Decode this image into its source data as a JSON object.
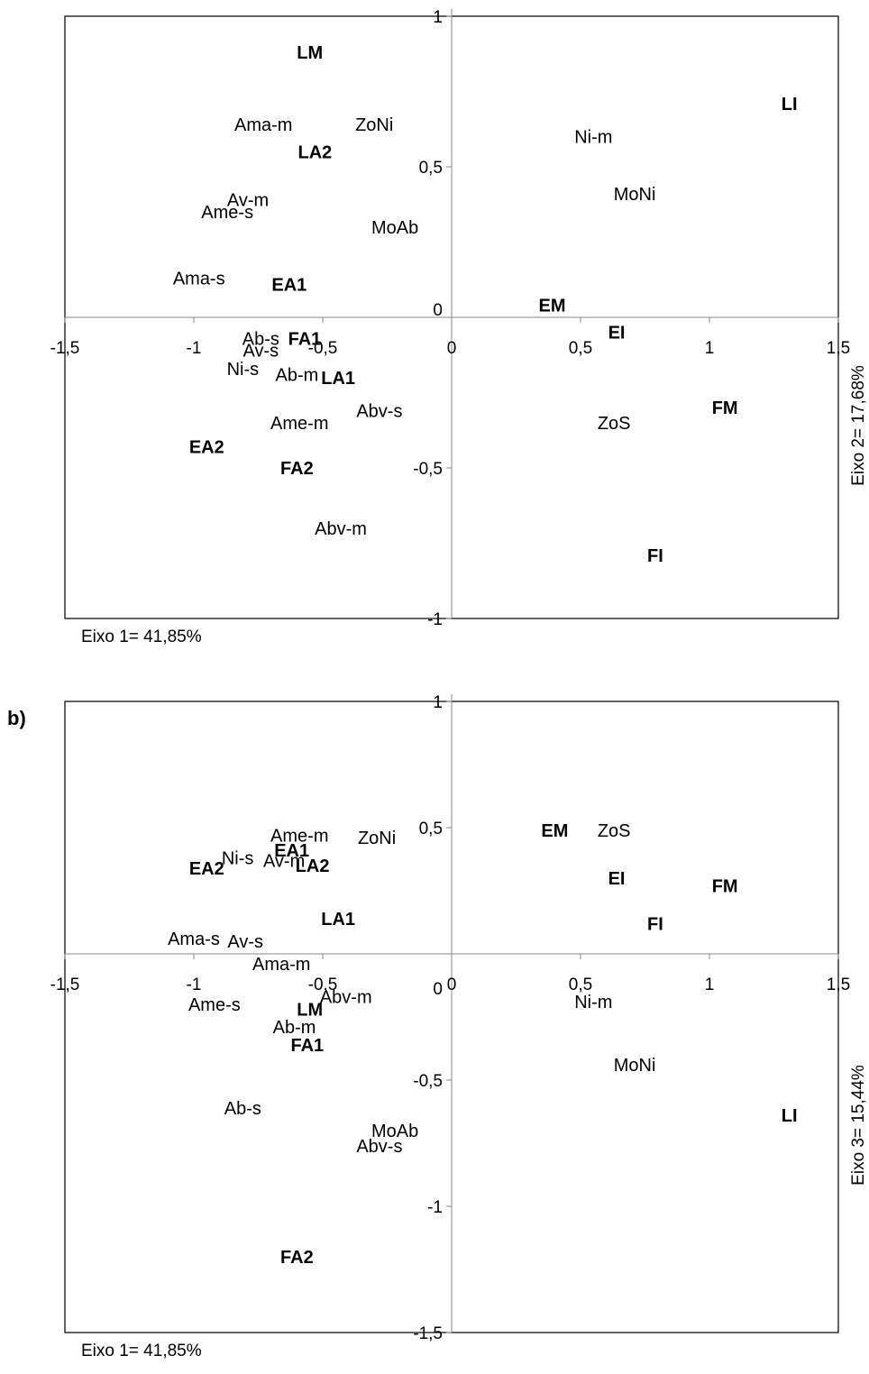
{
  "panel_label": "b)",
  "chart_data": [
    {
      "type": "scatter",
      "title": "",
      "xlabel": "Eixo 1= 41,85%",
      "ylabel": "Eixo 2= 17,68%",
      "xlim": [
        -1.5,
        1.5
      ],
      "ylim": [
        -1,
        1
      ],
      "x_ticks": [
        "-1,5",
        "-1",
        "-0,5",
        "0",
        "0,5",
        "1",
        "1,5"
      ],
      "y_ticks": [
        "-1",
        "-0,5",
        "0",
        "0,5",
        "1"
      ],
      "grid": false,
      "points": [
        {
          "label": "LM",
          "x": -0.55,
          "y": 0.88,
          "bold": true
        },
        {
          "label": "LI",
          "x": 1.31,
          "y": 0.71,
          "bold": true
        },
        {
          "label": "Ama-m",
          "x": -0.73,
          "y": 0.64,
          "bold": false
        },
        {
          "label": "ZoNi",
          "x": -0.3,
          "y": 0.64,
          "bold": false
        },
        {
          "label": "LA2",
          "x": -0.53,
          "y": 0.55,
          "bold": true
        },
        {
          "label": "Ni-m",
          "x": 0.55,
          "y": 0.6,
          "bold": false
        },
        {
          "label": "Av-m",
          "x": -0.79,
          "y": 0.39,
          "bold": false
        },
        {
          "label": "Ame-s",
          "x": -0.87,
          "y": 0.35,
          "bold": false
        },
        {
          "label": "MoAb",
          "x": -0.22,
          "y": 0.3,
          "bold": false
        },
        {
          "label": "MoNi",
          "x": 0.71,
          "y": 0.41,
          "bold": false
        },
        {
          "label": "Ama-s",
          "x": -0.98,
          "y": 0.13,
          "bold": false
        },
        {
          "label": "EA1",
          "x": -0.63,
          "y": 0.11,
          "bold": true
        },
        {
          "label": "EM",
          "x": 0.39,
          "y": 0.04,
          "bold": true
        },
        {
          "label": "Ab-s",
          "x": -0.74,
          "y": -0.07,
          "bold": false
        },
        {
          "label": "FA1",
          "x": -0.57,
          "y": -0.07,
          "bold": true
        },
        {
          "label": "Av-s",
          "x": -0.74,
          "y": -0.11,
          "bold": false
        },
        {
          "label": "EI",
          "x": 0.64,
          "y": -0.05,
          "bold": true
        },
        {
          "label": "Ni-s",
          "x": -0.81,
          "y": -0.17,
          "bold": false
        },
        {
          "label": "Ab-m",
          "x": -0.6,
          "y": -0.19,
          "bold": false
        },
        {
          "label": "LA1",
          "x": -0.44,
          "y": -0.2,
          "bold": true
        },
        {
          "label": "Abv-s",
          "x": -0.28,
          "y": -0.31,
          "bold": false
        },
        {
          "label": "Ame-m",
          "x": -0.59,
          "y": -0.35,
          "bold": false
        },
        {
          "label": "ZoS",
          "x": 0.63,
          "y": -0.35,
          "bold": false
        },
        {
          "label": "FM",
          "x": 1.06,
          "y": -0.3,
          "bold": true
        },
        {
          "label": "EA2",
          "x": -0.95,
          "y": -0.43,
          "bold": true
        },
        {
          "label": "FA2",
          "x": -0.6,
          "y": -0.5,
          "bold": true
        },
        {
          "label": "Abv-m",
          "x": -0.43,
          "y": -0.7,
          "bold": false
        },
        {
          "label": "FI",
          "x": 0.79,
          "y": -0.79,
          "bold": true
        }
      ]
    },
    {
      "type": "scatter",
      "title": "",
      "xlabel": "Eixo 1= 41,85%",
      "ylabel": "Eixo 3= 15,44%",
      "xlim": [
        -1.5,
        1.5
      ],
      "ylim": [
        -1.5,
        1
      ],
      "x_ticks": [
        "-1,5",
        "-1",
        "-0,5",
        "0",
        "0,5",
        "1",
        "1,5"
      ],
      "y_ticks": [
        "-1,5",
        "-1",
        "-0,5",
        "0",
        "0,5",
        "1"
      ],
      "grid": false,
      "points": [
        {
          "label": "Ame-m",
          "x": -0.59,
          "y": 0.47,
          "bold": false
        },
        {
          "label": "ZoNi",
          "x": -0.29,
          "y": 0.46,
          "bold": false
        },
        {
          "label": "EM",
          "x": 0.4,
          "y": 0.49,
          "bold": true
        },
        {
          "label": "ZoS",
          "x": 0.63,
          "y": 0.49,
          "bold": false
        },
        {
          "label": "EA1",
          "x": -0.62,
          "y": 0.41,
          "bold": true
        },
        {
          "label": "Ni-s",
          "x": -0.83,
          "y": 0.38,
          "bold": false
        },
        {
          "label": "Av-m",
          "x": -0.65,
          "y": 0.37,
          "bold": false
        },
        {
          "label": "EA2",
          "x": -0.95,
          "y": 0.34,
          "bold": true
        },
        {
          "label": "LA2",
          "x": -0.54,
          "y": 0.35,
          "bold": true
        },
        {
          "label": "EI",
          "x": 0.64,
          "y": 0.3,
          "bold": true
        },
        {
          "label": "FM",
          "x": 1.06,
          "y": 0.27,
          "bold": true
        },
        {
          "label": "LA1",
          "x": -0.44,
          "y": 0.14,
          "bold": true
        },
        {
          "label": "FI",
          "x": 0.79,
          "y": 0.12,
          "bold": true
        },
        {
          "label": "Ama-s",
          "x": -1.0,
          "y": 0.06,
          "bold": false
        },
        {
          "label": "Av-s",
          "x": -0.8,
          "y": 0.05,
          "bold": false
        },
        {
          "label": "Ama-m",
          "x": -0.66,
          "y": -0.04,
          "bold": false
        },
        {
          "label": "Abv-m",
          "x": -0.41,
          "y": -0.17,
          "bold": false
        },
        {
          "label": "Ame-s",
          "x": -0.92,
          "y": -0.2,
          "bold": false
        },
        {
          "label": "LM",
          "x": -0.55,
          "y": -0.22,
          "bold": true
        },
        {
          "label": "Ni-m",
          "x": 0.55,
          "y": -0.19,
          "bold": false
        },
        {
          "label": "Ab-m",
          "x": -0.61,
          "y": -0.29,
          "bold": false
        },
        {
          "label": "FA1",
          "x": -0.56,
          "y": -0.36,
          "bold": true
        },
        {
          "label": "MoNi",
          "x": 0.71,
          "y": -0.44,
          "bold": false
        },
        {
          "label": "Ab-s",
          "x": -0.81,
          "y": -0.61,
          "bold": false
        },
        {
          "label": "MoAb",
          "x": -0.22,
          "y": -0.7,
          "bold": false
        },
        {
          "label": "LI",
          "x": 1.31,
          "y": -0.64,
          "bold": true
        },
        {
          "label": "Abv-s",
          "x": -0.28,
          "y": -0.76,
          "bold": false
        },
        {
          "label": "FA2",
          "x": -0.6,
          "y": -1.2,
          "bold": true
        }
      ]
    }
  ]
}
